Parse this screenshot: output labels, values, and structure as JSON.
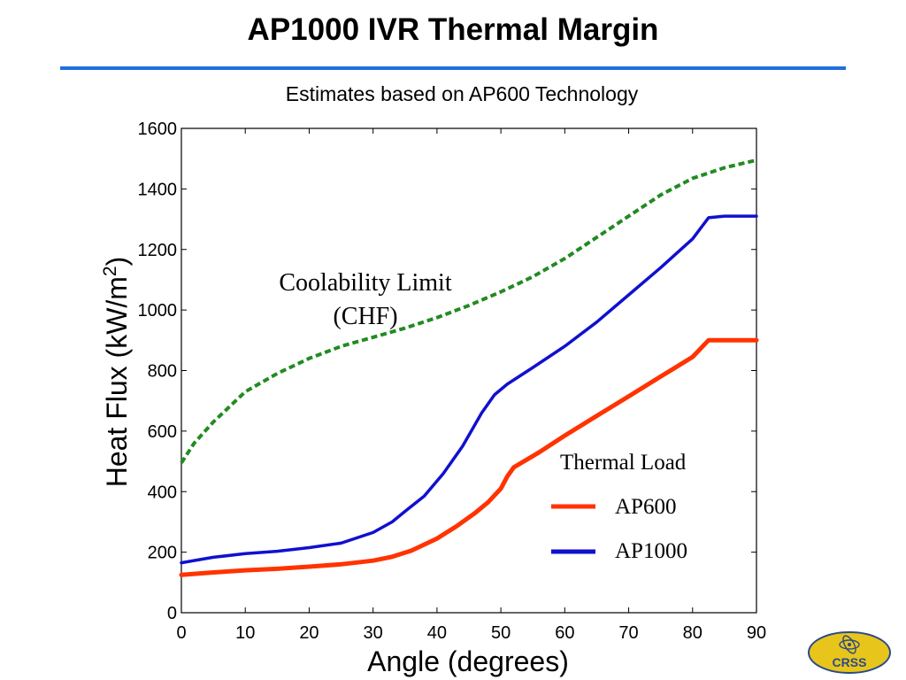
{
  "slide": {
    "title": "AP1000 IVR Thermal Margin",
    "subtitle": "Estimates based on AP600 Technology",
    "accent_color": "#1f6fe0"
  },
  "chart_data": {
    "type": "line",
    "xlabel": "Angle (degrees)",
    "ylabel": "Heat Flux (kW/m",
    "ylabel_superscript": "2",
    "ylabel_close": ")",
    "xlim": [
      0,
      90
    ],
    "ylim": [
      0,
      1600
    ],
    "x_ticks": [
      0,
      10,
      20,
      30,
      40,
      50,
      60,
      70,
      80,
      90
    ],
    "y_ticks": [
      0,
      200,
      400,
      600,
      800,
      1000,
      1200,
      1400,
      1600
    ],
    "grid": false,
    "annotations": {
      "chf_line1": "Coolability Limit",
      "chf_line2": "(CHF)",
      "legend_title": "Thermal Load"
    },
    "legend_position": "lower-right",
    "series": [
      {
        "name": "AP600",
        "color": "#ff3300",
        "style": "solid",
        "x": [
          0,
          5,
          10,
          15,
          20,
          25,
          30,
          33,
          36,
          40,
          43,
          46,
          48,
          50,
          51,
          52,
          56,
          60,
          65,
          70,
          75,
          80,
          82.5,
          85,
          87.5,
          90
        ],
        "y": [
          125,
          133,
          140,
          145,
          152,
          160,
          172,
          185,
          205,
          245,
          285,
          330,
          365,
          410,
          450,
          480,
          530,
          585,
          650,
          715,
          780,
          845,
          900,
          900,
          900,
          900
        ]
      },
      {
        "name": "AP1000",
        "color": "#1010d0",
        "style": "solid",
        "x": [
          0,
          5,
          10,
          15,
          20,
          25,
          30,
          33,
          35,
          38,
          41,
          44,
          47,
          49,
          51,
          55,
          60,
          65,
          70,
          75,
          80,
          82.5,
          85,
          87.5,
          90
        ],
        "y": [
          165,
          183,
          195,
          203,
          215,
          230,
          265,
          300,
          335,
          385,
          460,
          550,
          660,
          720,
          755,
          810,
          880,
          960,
          1050,
          1140,
          1235,
          1305,
          1310,
          1310,
          1310
        ]
      },
      {
        "name": "",
        "color": "#228b22",
        "style": "dashed",
        "x": [
          0,
          2,
          5,
          8,
          10,
          15,
          20,
          25,
          30,
          35,
          40,
          45,
          50,
          55,
          60,
          65,
          70,
          75,
          80,
          85,
          90
        ],
        "y": [
          495,
          560,
          630,
          690,
          730,
          790,
          840,
          880,
          910,
          940,
          975,
          1015,
          1060,
          1110,
          1170,
          1240,
          1310,
          1380,
          1435,
          1470,
          1495
        ]
      }
    ]
  },
  "logo": {
    "text": "CRSS",
    "color": "#e8c51a"
  }
}
